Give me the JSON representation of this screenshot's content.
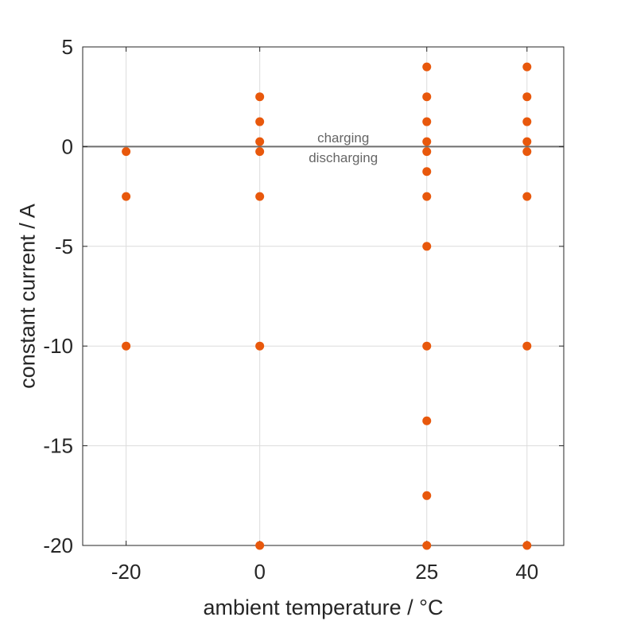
{
  "chart_data": {
    "type": "scatter",
    "title": "",
    "xlabel": "ambient temperature / °C",
    "ylabel": "constant current / A",
    "xlim": [
      -26.5,
      45.5
    ],
    "ylim": [
      -20,
      5
    ],
    "xticks": [
      -20,
      0,
      25,
      40
    ],
    "yticks": [
      5,
      0,
      -5,
      -10,
      -15,
      -20
    ],
    "grid": true,
    "reference_line": {
      "y": 0,
      "color": "#6e6e6e"
    },
    "annotations": [
      {
        "text": "charging",
        "x": 12.5,
        "y": 0.45
      },
      {
        "text": "discharging",
        "x": 12.5,
        "y": -0.55
      }
    ],
    "marker_color": "#e8580c",
    "points": [
      {
        "x": -20,
        "y": -0.25
      },
      {
        "x": -20,
        "y": -2.5
      },
      {
        "x": -20,
        "y": -10
      },
      {
        "x": 0,
        "y": 2.5
      },
      {
        "x": 0,
        "y": 1.25
      },
      {
        "x": 0,
        "y": 0.25
      },
      {
        "x": 0,
        "y": -0.25
      },
      {
        "x": 0,
        "y": -2.5
      },
      {
        "x": 0,
        "y": -10
      },
      {
        "x": 0,
        "y": -20
      },
      {
        "x": 25,
        "y": 4
      },
      {
        "x": 25,
        "y": 2.5
      },
      {
        "x": 25,
        "y": 1.25
      },
      {
        "x": 25,
        "y": 0.25
      },
      {
        "x": 25,
        "y": -0.25
      },
      {
        "x": 25,
        "y": -1.25
      },
      {
        "x": 25,
        "y": -2.5
      },
      {
        "x": 25,
        "y": -5
      },
      {
        "x": 25,
        "y": -10
      },
      {
        "x": 25,
        "y": -13.75
      },
      {
        "x": 25,
        "y": -17.5
      },
      {
        "x": 25,
        "y": -20
      },
      {
        "x": 40,
        "y": 4
      },
      {
        "x": 40,
        "y": 2.5
      },
      {
        "x": 40,
        "y": 1.25
      },
      {
        "x": 40,
        "y": 0.25
      },
      {
        "x": 40,
        "y": -0.25
      },
      {
        "x": 40,
        "y": -2.5
      },
      {
        "x": 40,
        "y": -10
      },
      {
        "x": 40,
        "y": -20
      }
    ]
  }
}
